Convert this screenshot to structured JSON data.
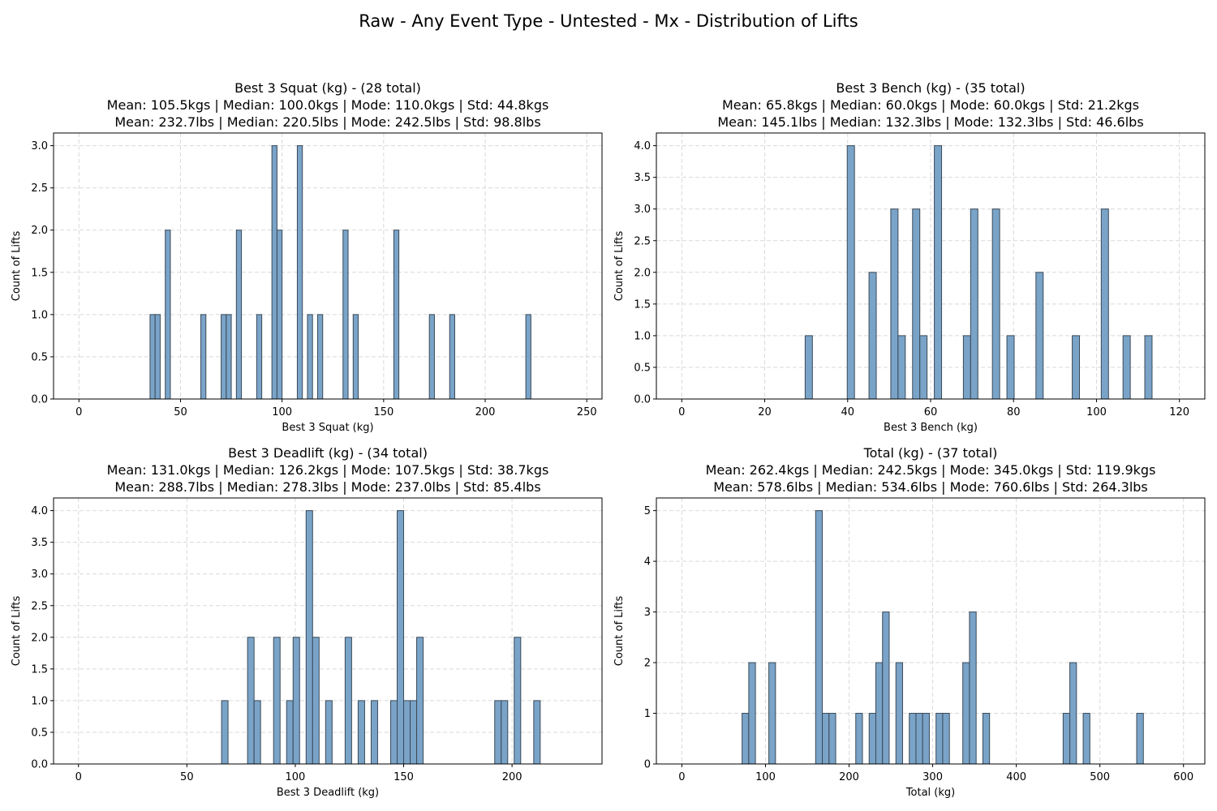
{
  "suptitle": "Raw - Any Event Type - Untested - Mx - Distribution of Lifts",
  "colors": {
    "bar_fill": "#7aa3c8",
    "bar_edge": "#3a4a58",
    "grid": "#d9d9d9"
  },
  "chart_data": [
    {
      "type": "bar",
      "title": "Best 3 Squat (kg) - (28 total)",
      "subtitle_kg": "Mean: 105.5kgs | Median: 100.0kgs | Mode: 110.0kgs | Std: 44.8kgs",
      "subtitle_lbs": "Mean: 232.7lbs | Median: 220.5lbs | Mode: 242.5lbs | Std: 98.8lbs",
      "xlabel": "Best 3 Squat (kg)",
      "ylabel": "Count of Lifts",
      "xlim": [
        -12.5,
        257.5
      ],
      "ylim": [
        0,
        3.15
      ],
      "xticks": [
        0,
        50,
        100,
        150,
        200,
        250
      ],
      "yticks": [
        0.0,
        0.5,
        1.0,
        1.5,
        2.0,
        2.5,
        3.0
      ],
      "ytick_decimals": 1,
      "bin_width": 2.5,
      "grid": true,
      "bins": [
        {
          "x": 35,
          "count": 1
        },
        {
          "x": 37.5,
          "count": 1
        },
        {
          "x": 42.5,
          "count": 2
        },
        {
          "x": 60,
          "count": 1
        },
        {
          "x": 70,
          "count": 1
        },
        {
          "x": 72.5,
          "count": 1
        },
        {
          "x": 77.5,
          "count": 2
        },
        {
          "x": 87.5,
          "count": 1
        },
        {
          "x": 95,
          "count": 3
        },
        {
          "x": 97.5,
          "count": 2
        },
        {
          "x": 107.5,
          "count": 3
        },
        {
          "x": 112.5,
          "count": 1
        },
        {
          "x": 117.5,
          "count": 1
        },
        {
          "x": 130,
          "count": 2
        },
        {
          "x": 135,
          "count": 1
        },
        {
          "x": 155,
          "count": 2
        },
        {
          "x": 172.5,
          "count": 1
        },
        {
          "x": 182.5,
          "count": 1
        },
        {
          "x": 220,
          "count": 1
        }
      ]
    },
    {
      "type": "bar",
      "title": "Best 3 Bench (kg) - (35 total)",
      "subtitle_kg": "Mean: 65.8kgs | Median: 60.0kgs | Mode: 60.0kgs | Std: 21.2kgs",
      "subtitle_lbs": "Mean: 145.1lbs | Median: 132.3lbs | Mode: 132.3lbs | Std: 46.6lbs",
      "xlabel": "Best 3 Bench (kg)",
      "ylabel": "Count of Lifts",
      "xlim": [
        -6.125,
        126.125
      ],
      "ylim": [
        0,
        4.2
      ],
      "xticks": [
        0,
        20,
        40,
        60,
        80,
        100,
        120
      ],
      "yticks": [
        0.0,
        0.5,
        1.0,
        1.5,
        2.0,
        2.5,
        3.0,
        3.5,
        4.0
      ],
      "ytick_decimals": 1,
      "bin_width": 1.75,
      "grid": true,
      "bins": [
        {
          "x": 29.75,
          "count": 1
        },
        {
          "x": 39.9,
          "count": 4
        },
        {
          "x": 45.15,
          "count": 2
        },
        {
          "x": 50.4,
          "count": 3
        },
        {
          "x": 52.15,
          "count": 1
        },
        {
          "x": 55.65,
          "count": 3
        },
        {
          "x": 57.4,
          "count": 1
        },
        {
          "x": 60.9,
          "count": 4
        },
        {
          "x": 67.9,
          "count": 1
        },
        {
          "x": 69.65,
          "count": 3
        },
        {
          "x": 74.9,
          "count": 3
        },
        {
          "x": 78.4,
          "count": 1
        },
        {
          "x": 85.4,
          "count": 2
        },
        {
          "x": 94.15,
          "count": 1
        },
        {
          "x": 101.15,
          "count": 3
        },
        {
          "x": 106.4,
          "count": 1
        },
        {
          "x": 111.65,
          "count": 1
        }
      ]
    },
    {
      "type": "bar",
      "title": "Best 3 Deadlift (kg) - (34 total)",
      "subtitle_kg": "Mean: 131.0kgs | Median: 126.2kgs | Mode: 107.5kgs | Std: 38.7kgs",
      "subtitle_lbs": "Mean: 288.7lbs | Median: 278.3lbs | Mode: 237.0lbs | Std: 85.4lbs",
      "xlabel": "Best 3 Deadlift (kg)",
      "ylabel": "Count of Lifts",
      "xlim": [
        -11.5,
        241.5
      ],
      "ylim": [
        0,
        4.2
      ],
      "xticks": [
        0,
        50,
        100,
        150,
        200
      ],
      "yticks": [
        0.0,
        0.5,
        1.0,
        1.5,
        2.0,
        2.5,
        3.0,
        3.5,
        4.0
      ],
      "ytick_decimals": 1,
      "bin_width": 3.0,
      "grid": true,
      "bins": [
        {
          "x": 66,
          "count": 1
        },
        {
          "x": 78,
          "count": 2
        },
        {
          "x": 81,
          "count": 1
        },
        {
          "x": 90,
          "count": 2
        },
        {
          "x": 96,
          "count": 1
        },
        {
          "x": 99,
          "count": 2
        },
        {
          "x": 105,
          "count": 4
        },
        {
          "x": 108,
          "count": 2
        },
        {
          "x": 114,
          "count": 1
        },
        {
          "x": 123,
          "count": 2
        },
        {
          "x": 129,
          "count": 1
        },
        {
          "x": 135,
          "count": 1
        },
        {
          "x": 144,
          "count": 1
        },
        {
          "x": 147,
          "count": 4
        },
        {
          "x": 150,
          "count": 1
        },
        {
          "x": 153,
          "count": 1
        },
        {
          "x": 156,
          "count": 2
        },
        {
          "x": 192,
          "count": 1
        },
        {
          "x": 195,
          "count": 1
        },
        {
          "x": 201,
          "count": 2
        },
        {
          "x": 210,
          "count": 1
        }
      ]
    },
    {
      "type": "bar",
      "title": "Total (kg) - (37 total)",
      "subtitle_kg": "Mean: 262.4kgs | Median: 242.5kgs | Mode: 345.0kgs | Std: 119.9kgs",
      "subtitle_lbs": "Mean: 578.6lbs | Median: 534.6lbs | Mode: 760.6lbs | Std: 264.3lbs",
      "xlabel": "Total (kg)",
      "ylabel": "Count of Lifts",
      "xlim": [
        -30.5,
        625.5
      ],
      "ylim": [
        0,
        5.25
      ],
      "xticks": [
        0,
        100,
        200,
        300,
        400,
        500,
        600
      ],
      "yticks": [
        0,
        1,
        2,
        3,
        4,
        5
      ],
      "ytick_decimals": 0,
      "bin_width": 8.0,
      "grid": true,
      "bins": [
        {
          "x": 72,
          "count": 1
        },
        {
          "x": 80,
          "count": 2
        },
        {
          "x": 104,
          "count": 2
        },
        {
          "x": 160,
          "count": 5
        },
        {
          "x": 168,
          "count": 1
        },
        {
          "x": 176,
          "count": 1
        },
        {
          "x": 208,
          "count": 1
        },
        {
          "x": 224,
          "count": 1
        },
        {
          "x": 232,
          "count": 2
        },
        {
          "x": 240,
          "count": 3
        },
        {
          "x": 256,
          "count": 2
        },
        {
          "x": 272,
          "count": 1
        },
        {
          "x": 280,
          "count": 1
        },
        {
          "x": 288,
          "count": 1
        },
        {
          "x": 304,
          "count": 1
        },
        {
          "x": 312,
          "count": 1
        },
        {
          "x": 336,
          "count": 2
        },
        {
          "x": 344,
          "count": 3
        },
        {
          "x": 360,
          "count": 1
        },
        {
          "x": 456,
          "count": 1
        },
        {
          "x": 464,
          "count": 2
        },
        {
          "x": 480,
          "count": 1
        },
        {
          "x": 544,
          "count": 1
        }
      ]
    }
  ]
}
